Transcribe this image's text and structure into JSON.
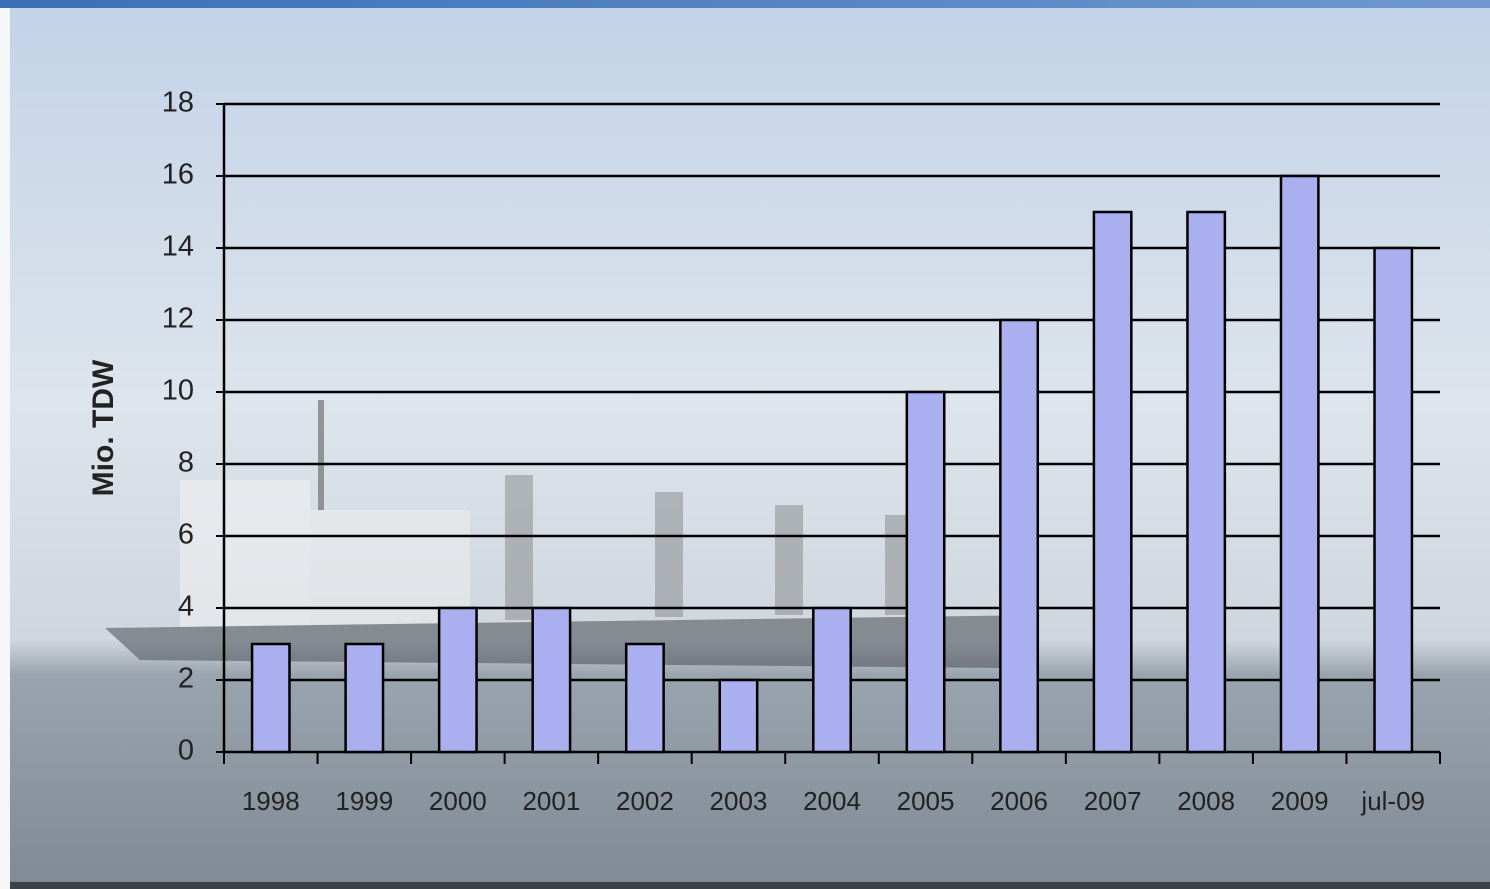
{
  "chart_data": {
    "type": "bar",
    "y_label": "Mio. TDW",
    "categories": [
      "1998",
      "1999",
      "2000",
      "2001",
      "2002",
      "2003",
      "2004",
      "2005",
      "2006",
      "2007",
      "2008",
      "2009",
      "jul-09"
    ],
    "values": [
      3,
      3,
      4,
      4,
      3,
      2,
      4,
      10,
      12,
      15,
      15,
      16,
      14
    ],
    "color": "#a9afef",
    "ylim": [
      0,
      18
    ],
    "yticks": [
      0,
      2,
      4,
      6,
      8,
      10,
      12,
      14,
      16,
      18
    ],
    "grid": true
  }
}
